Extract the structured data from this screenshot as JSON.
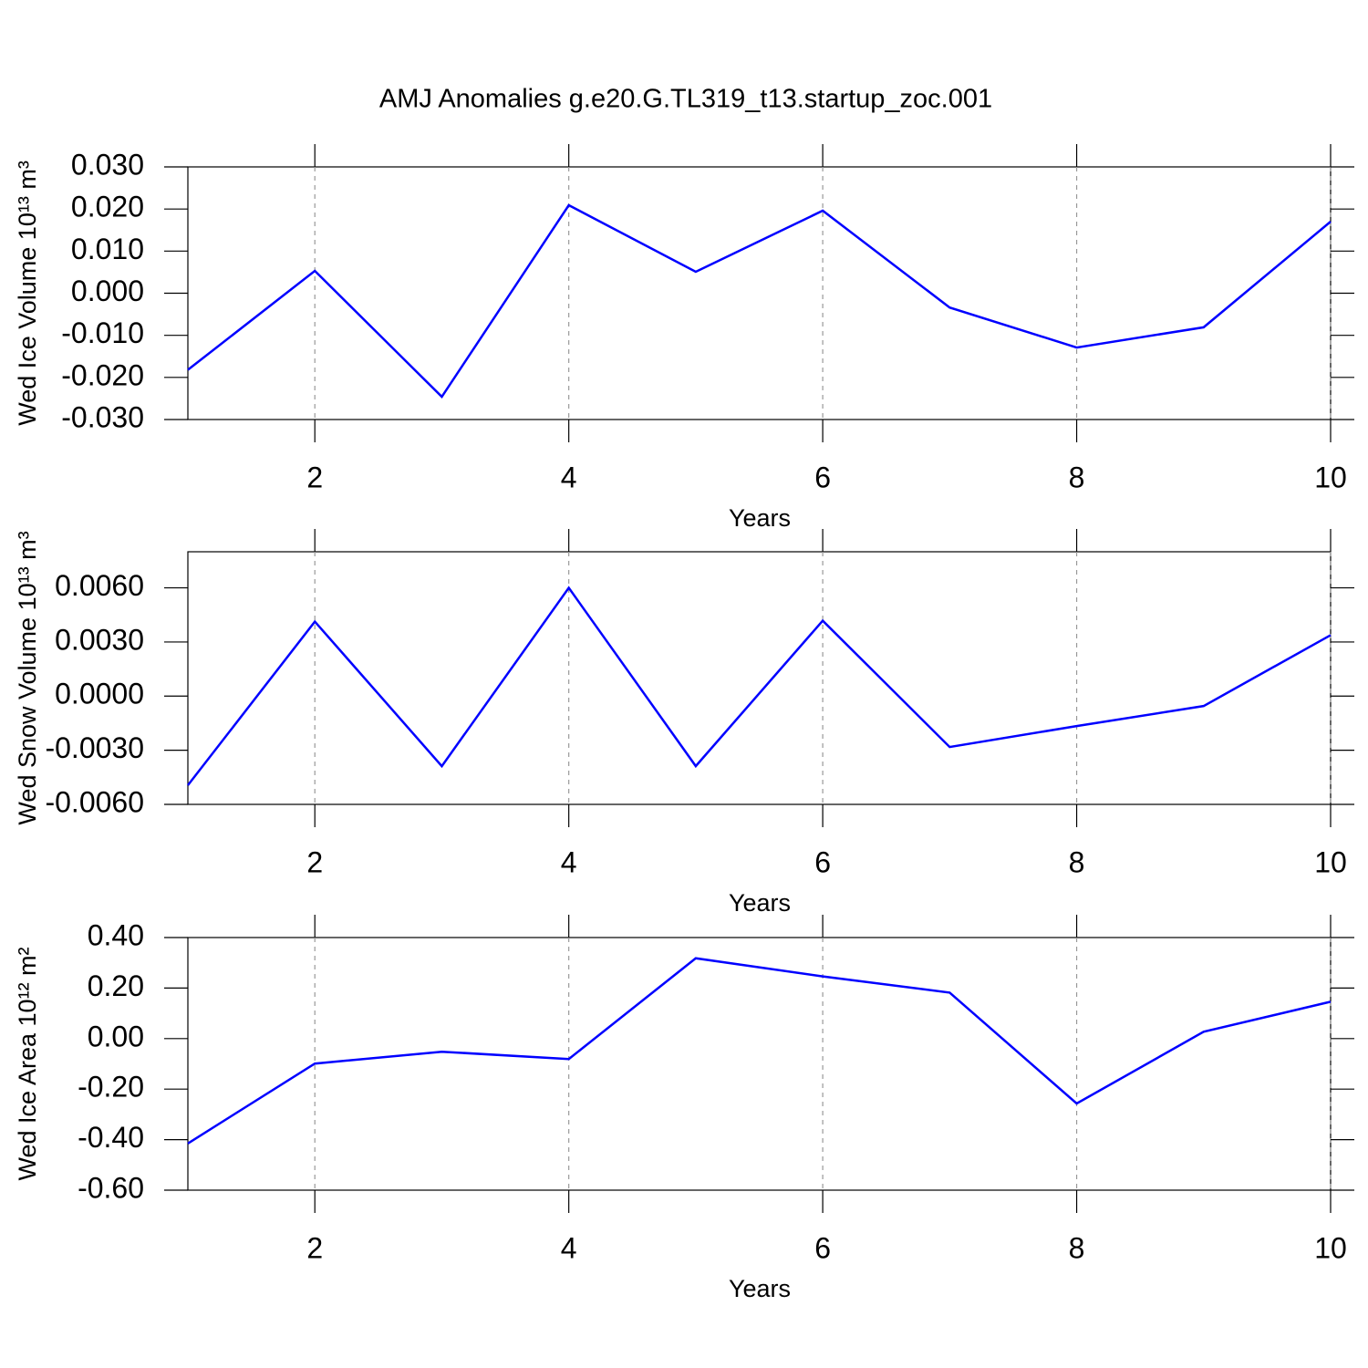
{
  "chart_data": [
    {
      "type": "line",
      "title": "AMJ Anomalies g.e20.G.TL319_t13.startup_zoc.001",
      "xlabel": "Years",
      "ylabel": "Wed Ice Volume 10¹³ m³",
      "x": [
        1,
        2,
        3,
        4,
        5,
        6,
        7,
        8,
        9,
        10
      ],
      "series": [
        {
          "color": "#0000ff",
          "values": [
            -0.0182,
            0.0053,
            -0.0246,
            0.0209,
            0.0051,
            0.0196,
            -0.0034,
            -0.0129,
            -0.0081,
            0.017
          ]
        }
      ],
      "xlim": [
        1,
        10
      ],
      "xticks": [
        2,
        4,
        6,
        8,
        10
      ],
      "ylim": [
        -0.03,
        0.03
      ],
      "yticks": [
        {
          "value": -0.03,
          "label": "-0.030"
        },
        {
          "value": -0.02,
          "label": "-0.020"
        },
        {
          "value": -0.01,
          "label": "-0.010"
        },
        {
          "value": 0,
          "label": "0.000"
        },
        {
          "value": 0.01,
          "label": "0.010"
        },
        {
          "value": 0.02,
          "label": "0.020"
        },
        {
          "value": 0.03,
          "label": "0.030"
        }
      ],
      "grid": "x"
    },
    {
      "type": "line",
      "xlabel": "Years",
      "ylabel": "Wed Snow Volume 10¹³ m³",
      "x": [
        1,
        2,
        3,
        4,
        5,
        6,
        7,
        8,
        9,
        10
      ],
      "series": [
        {
          "color": "#0000ff",
          "values": [
            -0.00494,
            0.00413,
            -0.00388,
            0.006,
            -0.00388,
            0.00418,
            -0.00282,
            -0.00166,
            -0.00055,
            0.00338
          ]
        }
      ],
      "xlim": [
        1,
        10
      ],
      "xticks": [
        2,
        4,
        6,
        8,
        10
      ],
      "ylim": [
        -0.006,
        0.008
      ],
      "yticks": [
        {
          "value": -0.006,
          "label": "-0.0060"
        },
        {
          "value": -0.003,
          "label": "-0.0030"
        },
        {
          "value": 0,
          "label": "0.0000"
        },
        {
          "value": 0.003,
          "label": "0.0030"
        },
        {
          "value": 0.006,
          "label": "0.0060"
        }
      ],
      "grid": "x"
    },
    {
      "type": "line",
      "xlabel": "Years",
      "ylabel": "Wed Ice Area 10¹² m²",
      "x": [
        1,
        2,
        3,
        4,
        5,
        6,
        7,
        8,
        9,
        10
      ],
      "series": [
        {
          "color": "#0000ff",
          "values": [
            -0.415,
            -0.099,
            -0.052,
            -0.081,
            0.318,
            0.246,
            0.182,
            -0.257,
            0.027,
            0.146
          ]
        }
      ],
      "xlim": [
        1,
        10
      ],
      "xticks": [
        2,
        4,
        6,
        8,
        10
      ],
      "ylim": [
        -0.6,
        0.4
      ],
      "yticks": [
        {
          "value": -0.6,
          "label": "-0.60"
        },
        {
          "value": -0.4,
          "label": "-0.40"
        },
        {
          "value": -0.2,
          "label": "-0.20"
        },
        {
          "value": 0,
          "label": "0.00"
        },
        {
          "value": 0.2,
          "label": "0.20"
        },
        {
          "value": 0.4,
          "label": "0.40"
        }
      ],
      "grid": "x"
    }
  ]
}
